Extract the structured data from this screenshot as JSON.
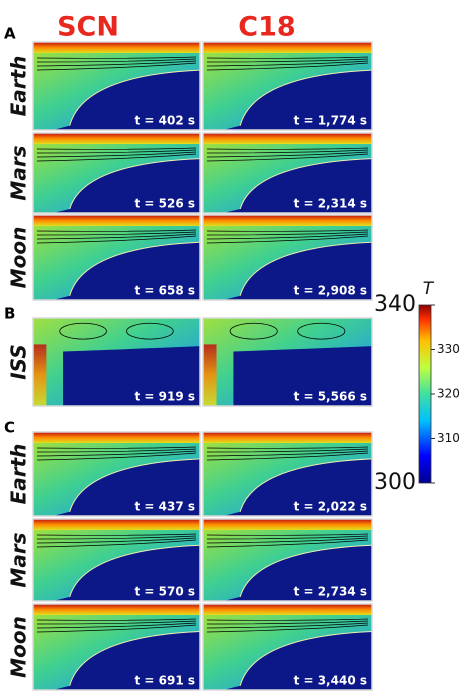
{
  "figure": {
    "column_headers": [
      "SCN",
      "C18"
    ],
    "sections": [
      {
        "letter": "A",
        "rows": [
          {
            "label": "Earth",
            "times": [
              "t = 402 s",
              "t = 1,774 s"
            ]
          },
          {
            "label": "Mars",
            "times": [
              "t = 526 s",
              "t = 2,314 s"
            ]
          },
          {
            "label": "Moon",
            "times": [
              "t = 658 s",
              "t = 2,908 s"
            ]
          }
        ]
      },
      {
        "letter": "B",
        "rows": [
          {
            "label": "ISS",
            "times": [
              "t = 919 s",
              "t = 5,566 s"
            ]
          }
        ]
      },
      {
        "letter": "C",
        "rows": [
          {
            "label": "Earth",
            "times": [
              "t = 437 s",
              "t = 2,022 s"
            ]
          },
          {
            "label": "Mars",
            "times": [
              "t = 570 s",
              "t = 2,734 s"
            ]
          },
          {
            "label": "Moon",
            "times": [
              "t = 691 s",
              "t = 3,440 s"
            ]
          }
        ]
      }
    ],
    "colorbar": {
      "label": "T",
      "lim": [
        300,
        340
      ],
      "ticks": [
        300,
        310,
        320,
        330,
        340
      ]
    }
  }
}
